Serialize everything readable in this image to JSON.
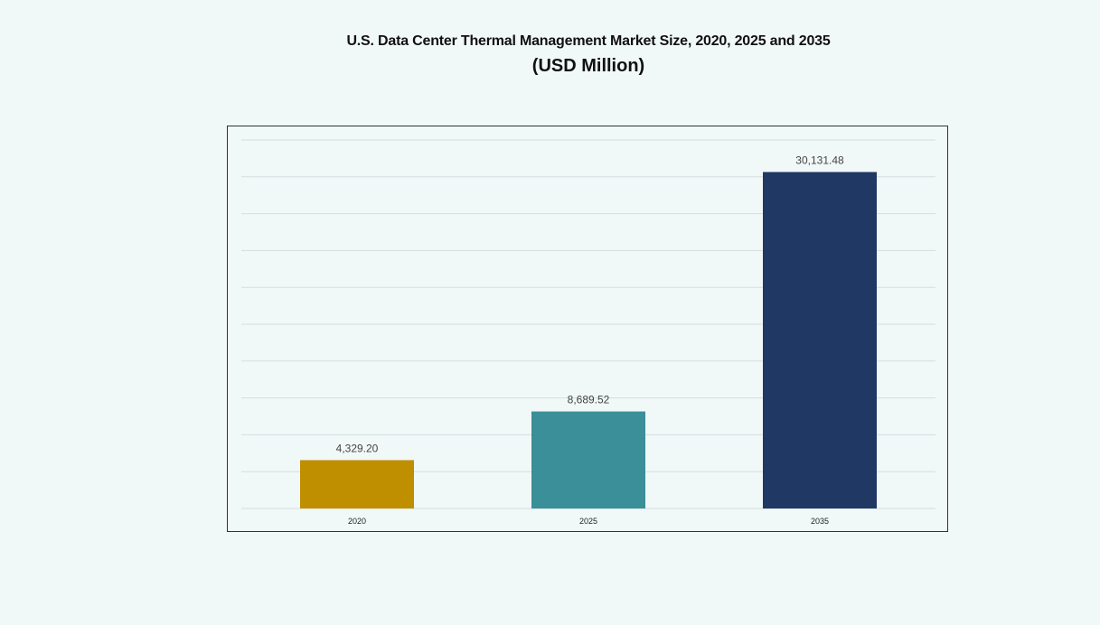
{
  "title": "U.S. Data Center Thermal Management Market Size, 2020, 2025 and 2035",
  "subtitle": "(USD Million)",
  "chart_data": {
    "type": "bar",
    "title": "U.S. Data Center Thermal Management Market Size, 2020, 2025 and 2035",
    "subtitle": "(USD Million)",
    "categories": [
      "2020",
      "2025",
      "2035"
    ],
    "values": [
      4329.2,
      8689.52,
      30131.48
    ],
    "value_labels": [
      "4,329.20",
      "8,689.52",
      "30,131.48"
    ],
    "colors": [
      "#bf8f00",
      "#3a8f98",
      "#1f3864"
    ],
    "xlabel": "",
    "ylabel": "",
    "ylim": [
      0,
      33000
    ],
    "y_gridlines": 10,
    "grid": true,
    "legend": "none"
  }
}
